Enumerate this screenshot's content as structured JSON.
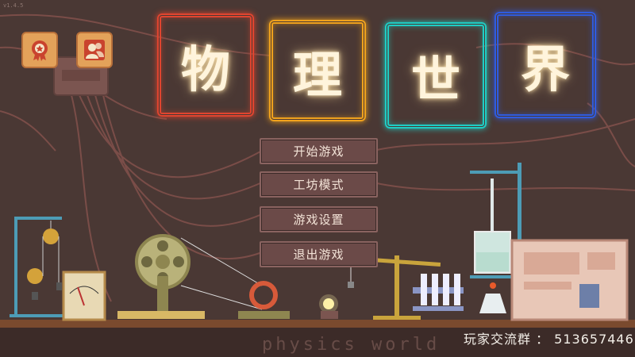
{
  "title": {
    "chars": [
      "物",
      "理",
      "世",
      "界"
    ]
  },
  "menu": {
    "items": [
      {
        "label": "开始游戏"
      },
      {
        "label": "工坊模式"
      },
      {
        "label": "游戏设置"
      },
      {
        "label": "退出游戏"
      }
    ]
  },
  "corner_buttons": {
    "achievements_icon": "medal-icon",
    "community_icon": "users-icon"
  },
  "footer": {
    "watermark": "physics world",
    "group_text": "玩家交流群 ： 513657446"
  },
  "version_text": "v1.4.5",
  "colors": {
    "background": "#4a3834",
    "neon_red": "#e0452f",
    "neon_orange": "#f0a21d",
    "neon_teal": "#1fcdc4",
    "neon_blue": "#2f5ce0",
    "button_fill": "#6b4a48",
    "corner_button": "#e3a25a"
  }
}
